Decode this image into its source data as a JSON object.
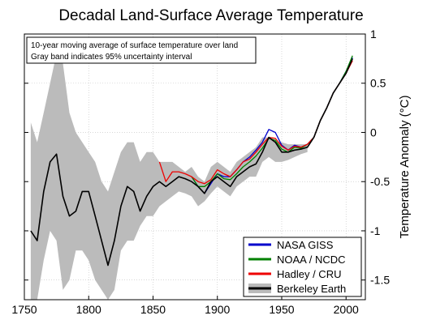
{
  "chart_data": {
    "type": "line",
    "title": "Decadal Land-Surface Average Temperature",
    "xlabel": "",
    "ylabel": "Temperature Anomaly (°C)",
    "xlim": [
      1750,
      2015
    ],
    "ylim": [
      -1.7,
      1.0
    ],
    "x_ticks": [
      "1750",
      "1800",
      "1850",
      "1900",
      "1950",
      "2000"
    ],
    "y_ticks": [
      "1",
      "0.5",
      "0",
      "-0.5",
      "-1",
      "-1.5"
    ],
    "grid": true,
    "y_axis_side": "right",
    "annotations": [
      "10-year moving average of surface temperature over land",
      "Gray band indicates 95% uncertainty interval"
    ],
    "legend": {
      "placement": "bottom-right",
      "entries": [
        "NASA GISS",
        "NOAA / NCDC",
        "Hadley / CRU",
        "Berkeley Earth"
      ]
    },
    "uncertainty_band": {
      "x": [
        1755,
        1760,
        1765,
        1770,
        1775,
        1780,
        1785,
        1790,
        1795,
        1800,
        1805,
        1810,
        1815,
        1820,
        1825,
        1830,
        1835,
        1840,
        1845,
        1850,
        1855,
        1860,
        1865,
        1870,
        1875,
        1880,
        1885,
        1890,
        1895,
        1900,
        1905,
        1910,
        1915,
        1920,
        1925,
        1930,
        1935,
        1940,
        1945,
        1950,
        1955,
        1960,
        1965,
        1970
      ],
      "upper": [
        0.1,
        -0.1,
        0.2,
        0.5,
        0.8,
        0.7,
        0.2,
        0.0,
        -0.1,
        -0.2,
        -0.3,
        -0.5,
        -0.6,
        -0.4,
        -0.2,
        -0.1,
        -0.1,
        -0.3,
        -0.2,
        -0.2,
        -0.3,
        -0.3,
        -0.3,
        -0.35,
        -0.4,
        -0.35,
        -0.45,
        -0.5,
        -0.35,
        -0.3,
        -0.35,
        -0.4,
        -0.3,
        -0.25,
        -0.2,
        -0.15,
        -0.05,
        -0.05,
        -0.1,
        -0.1,
        -0.12,
        -0.12,
        -0.12,
        -0.12
      ],
      "lower": [
        -1.7,
        -1.7,
        -1.3,
        -1.0,
        -1.1,
        -1.6,
        -1.5,
        -1.2,
        -1.2,
        -1.3,
        -1.5,
        -1.6,
        -1.7,
        -1.6,
        -1.2,
        -1.1,
        -1.1,
        -0.95,
        -0.85,
        -0.85,
        -0.75,
        -0.7,
        -0.65,
        -0.6,
        -0.62,
        -0.65,
        -0.75,
        -0.7,
        -0.62,
        -0.55,
        -0.6,
        -0.65,
        -0.55,
        -0.5,
        -0.45,
        -0.45,
        -0.3,
        -0.25,
        -0.3,
        -0.3,
        -0.28,
        -0.25,
        -0.22,
        -0.2
      ]
    },
    "series": [
      {
        "name": "NASA GISS",
        "color": "#0000cc",
        "x": [
          1880,
          1885,
          1890,
          1895,
          1900,
          1905,
          1910,
          1915,
          1920,
          1925,
          1930,
          1935,
          1940,
          1945,
          1950,
          1955,
          1960,
          1965,
          1970,
          1975,
          1980,
          1985,
          1990,
          1995,
          2000,
          2005
        ],
        "y": [
          -0.45,
          -0.55,
          -0.62,
          -0.52,
          -0.42,
          -0.45,
          -0.45,
          -0.38,
          -0.3,
          -0.25,
          -0.18,
          -0.1,
          0.03,
          0.0,
          -0.13,
          -0.18,
          -0.13,
          -0.15,
          -0.12,
          -0.05,
          0.12,
          0.25,
          0.4,
          0.5,
          0.62,
          0.76
        ]
      },
      {
        "name": "NOAA / NCDC",
        "color": "#008000",
        "x": [
          1880,
          1885,
          1890,
          1895,
          1900,
          1905,
          1910,
          1915,
          1920,
          1925,
          1930,
          1935,
          1940,
          1945,
          1950,
          1955,
          1960,
          1965,
          1970,
          1975,
          1980,
          1985,
          1990,
          1995,
          2000,
          2005
        ],
        "y": [
          -0.45,
          -0.55,
          -0.55,
          -0.5,
          -0.42,
          -0.47,
          -0.48,
          -0.42,
          -0.35,
          -0.3,
          -0.24,
          -0.16,
          -0.06,
          -0.08,
          -0.17,
          -0.2,
          -0.15,
          -0.16,
          -0.12,
          -0.05,
          0.12,
          0.25,
          0.4,
          0.5,
          0.62,
          0.78
        ]
      },
      {
        "name": "Hadley / CRU",
        "color": "#ee0000",
        "x": [
          1855,
          1860,
          1865,
          1870,
          1875,
          1880,
          1885,
          1890,
          1895,
          1900,
          1905,
          1910,
          1915,
          1920,
          1925,
          1930,
          1935,
          1940,
          1945,
          1950,
          1955,
          1960,
          1965,
          1970,
          1975,
          1980,
          1985,
          1990,
          1995,
          2000,
          2005
        ],
        "y": [
          -0.3,
          -0.5,
          -0.4,
          -0.4,
          -0.42,
          -0.45,
          -0.5,
          -0.52,
          -0.48,
          -0.38,
          -0.42,
          -0.45,
          -0.38,
          -0.3,
          -0.27,
          -0.2,
          -0.12,
          -0.05,
          -0.06,
          -0.14,
          -0.18,
          -0.14,
          -0.15,
          -0.12,
          -0.05,
          0.12,
          0.25,
          0.4,
          0.5,
          0.6,
          0.73
        ]
      },
      {
        "name": "Berkeley Earth",
        "color": "#000000",
        "x": [
          1755,
          1760,
          1765,
          1770,
          1775,
          1780,
          1785,
          1790,
          1795,
          1800,
          1805,
          1810,
          1815,
          1820,
          1825,
          1830,
          1835,
          1840,
          1845,
          1850,
          1855,
          1860,
          1865,
          1870,
          1875,
          1880,
          1885,
          1890,
          1895,
          1900,
          1905,
          1910,
          1915,
          1920,
          1925,
          1930,
          1935,
          1940,
          1945,
          1950,
          1955,
          1960,
          1965,
          1970,
          1975,
          1980,
          1985,
          1990,
          1995,
          2000,
          2005
        ],
        "y": [
          -1.0,
          -1.1,
          -0.6,
          -0.3,
          -0.22,
          -0.65,
          -0.85,
          -0.8,
          -0.6,
          -0.6,
          -0.85,
          -1.1,
          -1.35,
          -1.1,
          -0.75,
          -0.55,
          -0.6,
          -0.8,
          -0.65,
          -0.55,
          -0.5,
          -0.55,
          -0.5,
          -0.45,
          -0.47,
          -0.5,
          -0.55,
          -0.62,
          -0.5,
          -0.45,
          -0.5,
          -0.55,
          -0.45,
          -0.4,
          -0.35,
          -0.32,
          -0.2,
          -0.05,
          -0.1,
          -0.2,
          -0.2,
          -0.18,
          -0.17,
          -0.15,
          -0.05,
          0.12,
          0.25,
          0.4,
          0.5,
          0.6,
          0.75
        ]
      }
    ]
  }
}
